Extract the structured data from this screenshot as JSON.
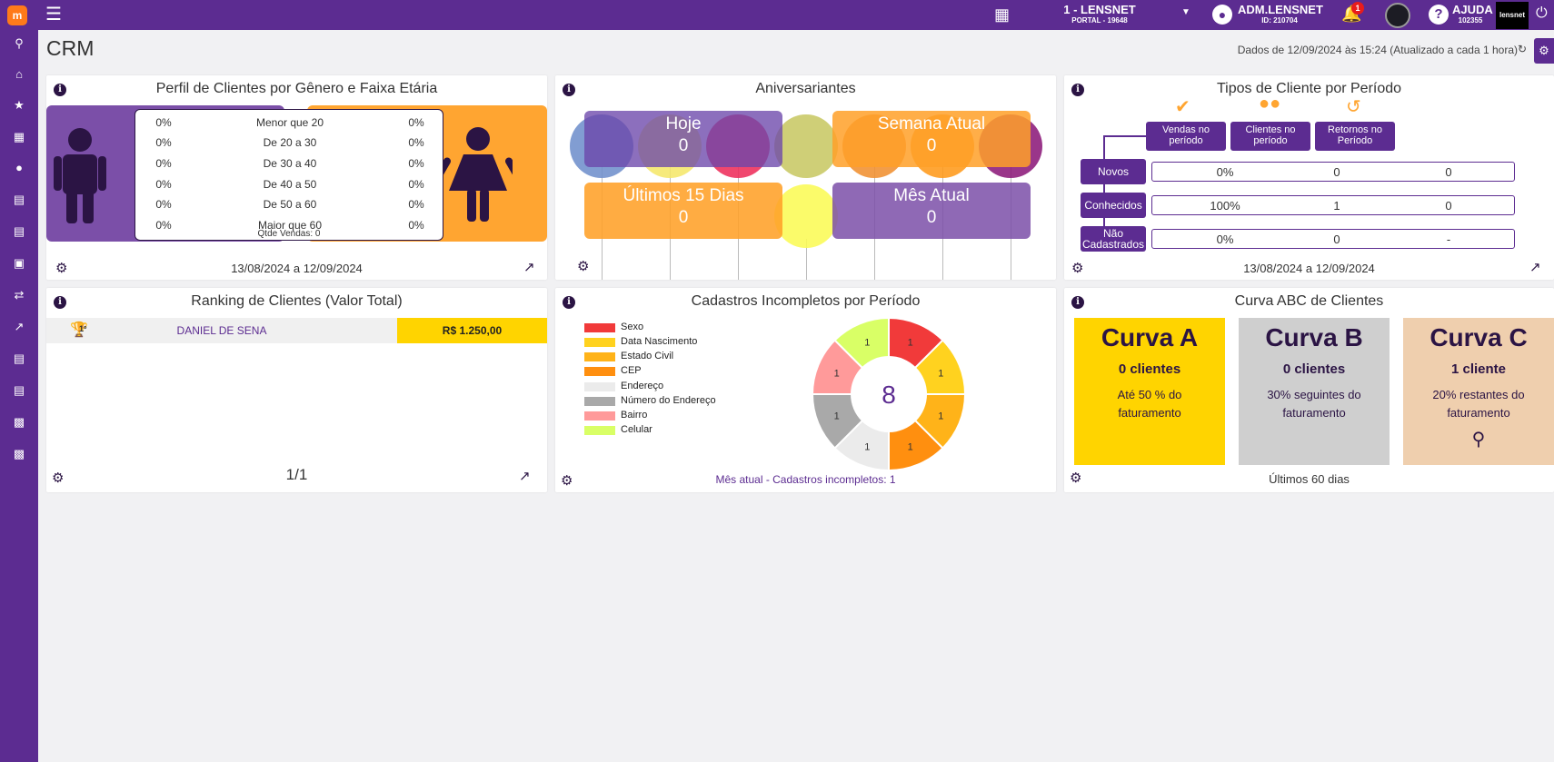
{
  "topbar": {
    "logo": "m",
    "store_name": "1 - LENSNET",
    "store_sub": "PORTAL - 19648",
    "user_name": "ADM.LENSNET",
    "user_id": "ID: 210704",
    "notif_count": "1",
    "help_label": "AJUDA",
    "help_sub": "102355",
    "brand": "lensnet"
  },
  "sidebar": {
    "items": [
      "search-icon",
      "home-icon",
      "star-icon",
      "building-icon",
      "users-icon",
      "document-icon",
      "document-icon",
      "money-icon",
      "exchange-icon",
      "chart-icon",
      "document-icon",
      "document-icon",
      "clipboard-icon",
      "clipboard-icon"
    ]
  },
  "page": {
    "title": "CRM",
    "updated": "Dados de 12/09/2024 às 15:24 (Atualizado a cada 1 hora)"
  },
  "perfil": {
    "title": "Perfil de Clientes por Gênero e Faixa Etária",
    "rows": [
      {
        "male": "0%",
        "range": "Menor que 20",
        "female": "0%"
      },
      {
        "male": "0%",
        "range": "De 20 a 30",
        "female": "0%"
      },
      {
        "male": "0%",
        "range": "De 30 a 40",
        "female": "0%"
      },
      {
        "male": "0%",
        "range": "De 40 a 50",
        "female": "0%"
      },
      {
        "male": "0%",
        "range": "De 50 a 60",
        "female": "0%"
      },
      {
        "male": "0%",
        "range": "Maior que 60",
        "female": "0%"
      }
    ],
    "qtd": "Qtde Vendas: 0",
    "period": "13/08/2024 a 12/09/2024",
    "colors": {
      "male": "#7b4fa8",
      "female": "#ffa531"
    }
  },
  "aniversariantes": {
    "title": "Aniversariantes",
    "boxes": [
      {
        "label": "Hoje",
        "value": "0"
      },
      {
        "label": "Semana Atual",
        "value": "0"
      },
      {
        "label": "Últimos 15 Dias",
        "value": "0"
      },
      {
        "label": "Mês Atual",
        "value": "0"
      }
    ]
  },
  "tipos": {
    "title": "Tipos de Cliente por Período",
    "headers": [
      "Vendas no período",
      "Clientes no período",
      "Retornos no Período"
    ],
    "rows": [
      {
        "label": "Novos",
        "v1": "0%",
        "v2": "0",
        "v3": "0"
      },
      {
        "label": "Conhecidos",
        "v1": "100%",
        "v2": "1",
        "v3": "0"
      },
      {
        "label": "Não Cadastrados",
        "v1": "0%",
        "v2": "0",
        "v3": "-"
      }
    ],
    "period": "13/08/2024 a 12/09/2024"
  },
  "ranking": {
    "title": "Ranking de Clientes (Valor Total)",
    "rows": [
      {
        "pos": "1º",
        "name": "DANIEL DE SENA",
        "value": "R$ 1.250,00"
      }
    ],
    "page": "1/1"
  },
  "cadastros": {
    "title": "Cadastros Incompletos por Período",
    "legend": [
      {
        "label": "Sexo",
        "color": "#f13a3a"
      },
      {
        "label": "Data Nascimento",
        "color": "#ffd21f"
      },
      {
        "label": "Estado Civil",
        "color": "#ffb319"
      },
      {
        "label": "CEP",
        "color": "#ff8f0f"
      },
      {
        "label": "Endereço",
        "color": "#ebebeb"
      },
      {
        "label": "Número do Endereço",
        "color": "#a9a9a9"
      },
      {
        "label": "Bairro",
        "color": "#ff9a9a"
      },
      {
        "label": "Celular",
        "color": "#d9ff66"
      }
    ],
    "center_value": "8",
    "footer": "Mês atual - Cadastros incompletos: 1"
  },
  "chart_data": {
    "type": "pie",
    "title": "Cadastros Incompletos por Período",
    "categories": [
      "Sexo",
      "Data Nascimento",
      "Estado Civil",
      "CEP",
      "Endereço",
      "Número do Endereço",
      "Bairro",
      "Celular"
    ],
    "values": [
      1,
      1,
      1,
      1,
      1,
      1,
      1,
      1
    ],
    "colors": [
      "#f13a3a",
      "#ffd21f",
      "#ffb319",
      "#ff8f0f",
      "#ebebeb",
      "#a9a9a9",
      "#ff9a9a",
      "#d9ff66"
    ],
    "center_value": "8"
  },
  "curva": {
    "title": "Curva ABC de Clientes",
    "cards": [
      {
        "title": "Curva A",
        "count": "0 clientes",
        "desc": "Até 50 % do faturamento",
        "color": "#ffd400"
      },
      {
        "title": "Curva B",
        "count": "0 clientes",
        "desc": "30% seguintes do faturamento",
        "color": "#cfcfcf"
      },
      {
        "title": "Curva C",
        "count": "1 cliente",
        "desc": "20% restantes do faturamento",
        "color": "#efcfae"
      }
    ],
    "footer": "Últimos 60 dias"
  }
}
